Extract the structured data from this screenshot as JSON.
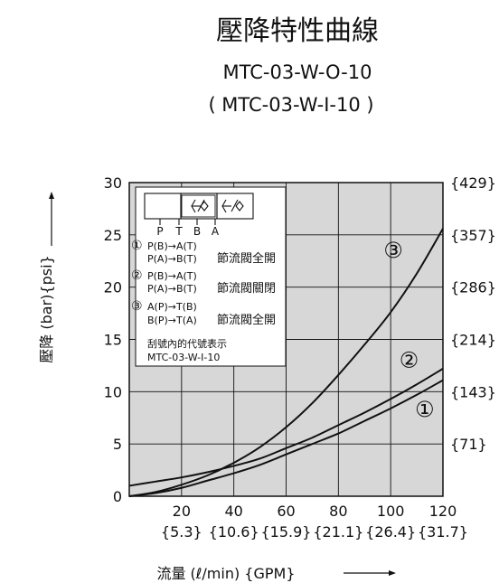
{
  "chart_data": {
    "type": "line",
    "title": "壓降特性曲線",
    "subtitle_1": "MTC-03-W-O-10",
    "subtitle_2": "( MTC-03-W-I-10 )",
    "xlabel": "流量 (ℓ/min) {GPM}",
    "ylabel": "壓降 (bar){psi}",
    "xlim": [
      0,
      120
    ],
    "ylim": [
      0,
      30
    ],
    "grid": true,
    "x_ticks": [
      {
        "value": 20,
        "label": "20",
        "sub": "{5.3}"
      },
      {
        "value": 40,
        "label": "40",
        "sub": "{10.6}"
      },
      {
        "value": 60,
        "label": "60",
        "sub": "{15.9}"
      },
      {
        "value": 80,
        "label": "80",
        "sub": "{21.1}"
      },
      {
        "value": 100,
        "label": "100",
        "sub": "{26.4}"
      },
      {
        "value": 120,
        "label": "120",
        "sub": "{31.7}"
      }
    ],
    "y_ticks": [
      {
        "value": 0,
        "label": "0",
        "right": ""
      },
      {
        "value": 5,
        "label": "5",
        "right": "{71}"
      },
      {
        "value": 10,
        "label": "10",
        "right": "{143}"
      },
      {
        "value": 15,
        "label": "15",
        "right": "{214}"
      },
      {
        "value": 20,
        "label": "20",
        "right": "{286}"
      },
      {
        "value": 25,
        "label": "25",
        "right": "{357}"
      },
      {
        "value": 30,
        "label": "30",
        "right": "{429}"
      }
    ],
    "series": [
      {
        "name": "①",
        "x": [
          0,
          10,
          20,
          30,
          40,
          50,
          60,
          70,
          80,
          90,
          100,
          110,
          120
        ],
        "y": [
          0,
          0.3,
          0.8,
          1.5,
          2.2,
          3.0,
          4.0,
          5.0,
          6.0,
          7.2,
          8.4,
          9.7,
          11.1
        ],
        "label_at": [
          113,
          8.3
        ]
      },
      {
        "name": "②",
        "x": [
          0,
          10,
          20,
          30,
          40,
          50,
          60,
          70,
          80,
          90,
          100,
          110,
          120
        ],
        "y": [
          1.0,
          1.4,
          1.8,
          2.3,
          2.9,
          3.6,
          4.6,
          5.6,
          6.8,
          8.0,
          9.3,
          10.7,
          12.2
        ],
        "label_at": [
          107,
          13.0
        ]
      },
      {
        "name": "③",
        "x": [
          0,
          10,
          20,
          30,
          40,
          50,
          60,
          70,
          80,
          90,
          100,
          110,
          120
        ],
        "y": [
          0,
          0.4,
          1.1,
          2.0,
          3.2,
          4.7,
          6.6,
          8.9,
          11.6,
          14.5,
          17.6,
          21.3,
          25.6
        ],
        "label_at": [
          101,
          23.5
        ]
      }
    ],
    "inset": {
      "symbol_ports": [
        "P",
        "T",
        "B",
        "A"
      ],
      "legend": [
        {
          "num": "①",
          "line1": "P(B)→A(T)",
          "line2": "P(A)→B(T)",
          "desc": "節流閥全開"
        },
        {
          "num": "②",
          "line1": "P(B)→A(T)",
          "line2": "P(A)→B(T)",
          "desc": "節流閥關閉"
        },
        {
          "num": "③",
          "line1": "A(P)→T(B)",
          "line2": "B(P)→T(A)",
          "desc": "節流閥全開"
        }
      ],
      "note_1": "刮號內的代號表示",
      "note_2": "MTC-03-W-I-10"
    }
  }
}
